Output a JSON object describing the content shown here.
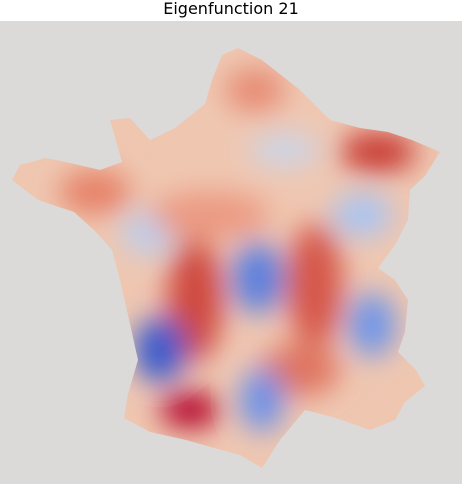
{
  "chart_data": {
    "type": "heatmap",
    "title": "Eigenfunction 21",
    "colormap": "coolwarm",
    "background_color": "#dcdad9",
    "axes_visible": false,
    "colorbar": false,
    "region": "France (mainland)",
    "features": [
      {
        "sign": "positive",
        "label": "strong red ridge, north-east",
        "intensity": 0.9
      },
      {
        "sign": "positive",
        "label": "red ridge, central band",
        "intensity": 0.8
      },
      {
        "sign": "positive",
        "label": "strong red spot, south-west",
        "intensity": 1.0
      },
      {
        "sign": "negative",
        "label": "strong blue spot, south-west interior",
        "intensity": 1.0
      },
      {
        "sign": "negative",
        "label": "blue spot, centre",
        "intensity": 0.85
      },
      {
        "sign": "negative",
        "label": "blue spot, south",
        "intensity": 0.75
      },
      {
        "sign": "negative",
        "label": "blue spot, east",
        "intensity": 0.7
      },
      {
        "sign": "negative",
        "label": "light blue, east-north-east",
        "intensity": 0.5
      },
      {
        "sign": "negative",
        "label": "light blue, west",
        "intensity": 0.35
      }
    ]
  }
}
